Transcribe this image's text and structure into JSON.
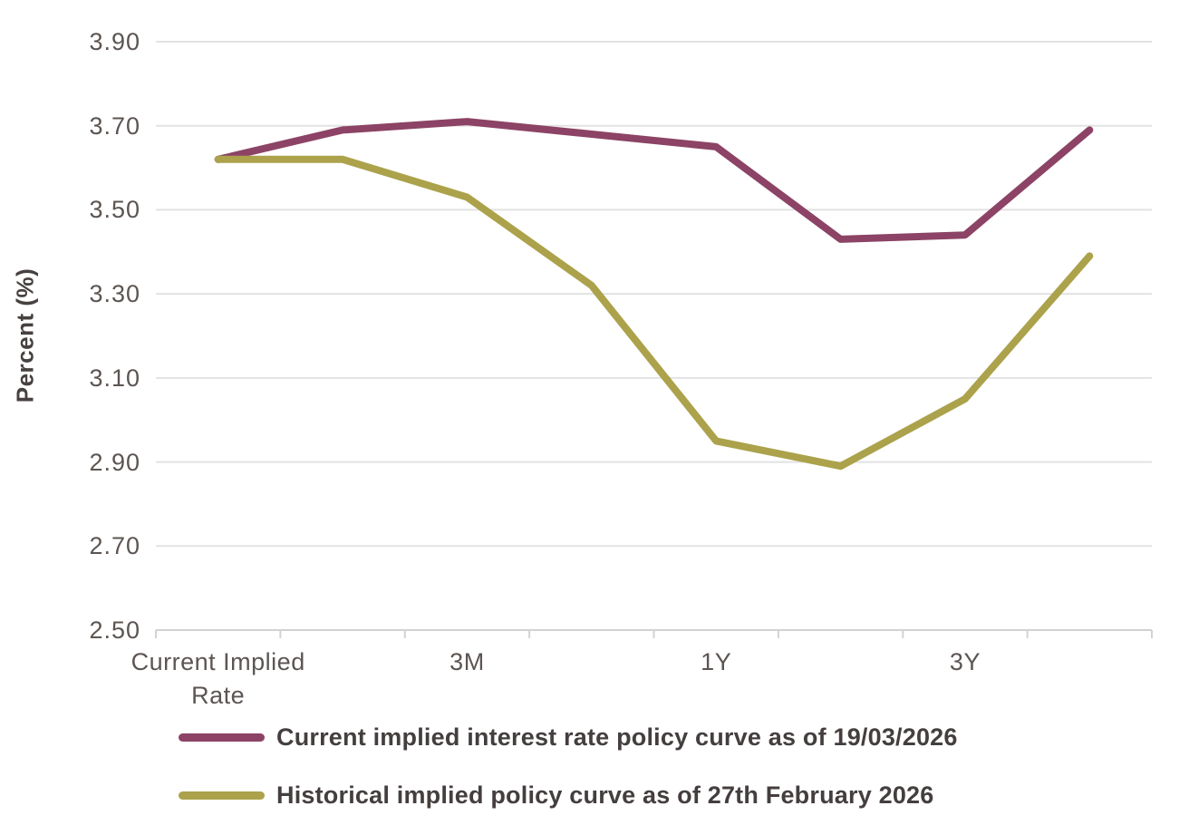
{
  "chart_data": {
    "type": "line",
    "title": "",
    "xlabel": "",
    "ylabel": "Percent (%)",
    "ylim": [
      2.5,
      3.9
    ],
    "ytick_step": 0.2,
    "yticks": [
      "3.90",
      "3.70",
      "3.50",
      "3.30",
      "3.10",
      "2.90",
      "2.70",
      "2.50"
    ],
    "categories": [
      "Current Implied Rate",
      "",
      "3M",
      "",
      "1Y",
      "",
      "3Y",
      ""
    ],
    "grid": "horizontal",
    "legend_position": "bottom-left",
    "series": [
      {
        "name": "Current implied interest rate policy curve as of 19/03/2026",
        "color": "#8C4365",
        "values": [
          3.62,
          3.69,
          3.71,
          3.68,
          3.65,
          3.43,
          3.44,
          3.69
        ]
      },
      {
        "name": "Historical implied policy curve as of 27th February 2026",
        "color": "#ABA24B",
        "values": [
          3.62,
          3.62,
          3.53,
          3.32,
          2.95,
          2.89,
          3.05,
          3.39
        ]
      }
    ]
  },
  "colors": {
    "background": "#FFFFFF",
    "gridline": "#E2E2E2",
    "axis_line": "#D4D2D0",
    "tick_label_text": "#5C5552",
    "axis_title_text": "#474140",
    "legend_text": "#443F3E"
  }
}
